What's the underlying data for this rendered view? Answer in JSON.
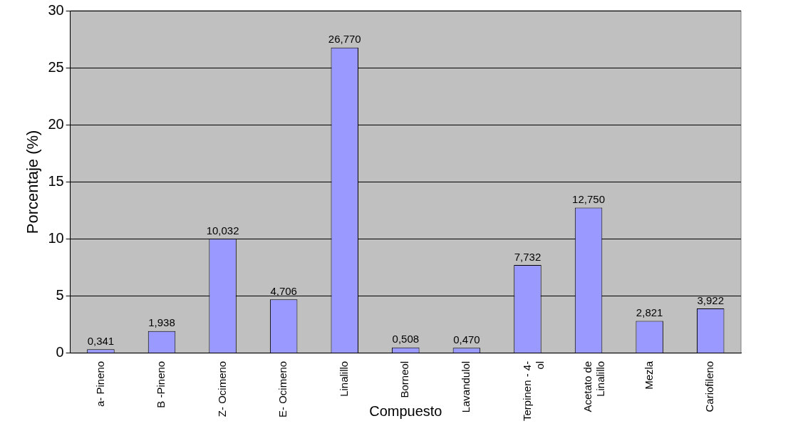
{
  "chart_data": {
    "type": "bar",
    "xlabel": "Compuesto",
    "ylabel": "Porcentaje (%)",
    "categories": [
      "a- Pineno",
      "B -Pineno",
      "Z- Ocimeno",
      "E- Ocimeno",
      "Linalillo",
      "Borneol",
      "Lavandulol",
      "Terpinen - 4-ol",
      "Acetato de Linalillo",
      "Mezla",
      "Cariofileno"
    ],
    "values": [
      0.341,
      1.938,
      10.032,
      4.706,
      26.77,
      0.508,
      0.47,
      7.732,
      12.75,
      2.821,
      3.922
    ],
    "value_labels": [
      "0,341",
      "1,938",
      "10,032",
      "4,706",
      "26,770",
      "0,508",
      "0,470",
      "7,732",
      "12,750",
      "2,821",
      "3,922"
    ],
    "color": "#9999ff",
    "ylim": [
      0,
      30
    ],
    "yticks": [
      0,
      5,
      10,
      15,
      20,
      25,
      30
    ],
    "grid": "y",
    "legend": false
  }
}
